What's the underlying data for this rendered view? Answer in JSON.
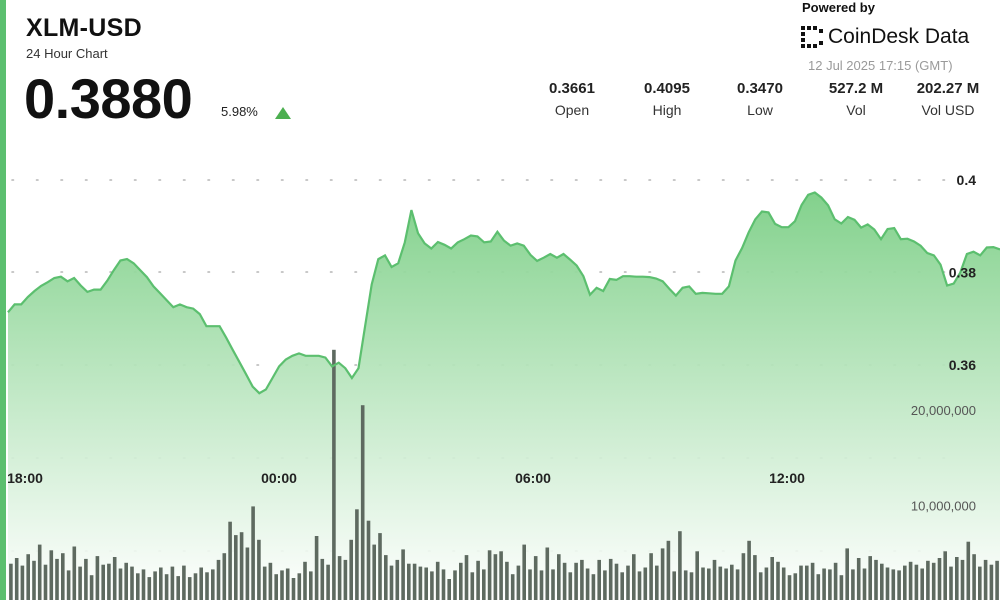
{
  "header": {
    "title": "XLM-USD",
    "subtitle": "24 Hour Chart",
    "price": "0.3880",
    "change_pct": "5.98%",
    "powered_by": "Powered by",
    "brand": "CoinDesk Data",
    "timestamp": "12 Jul 2025 17:15 (GMT)"
  },
  "stats": [
    {
      "value": "0.3661",
      "label": "Open"
    },
    {
      "value": "0.4095",
      "label": "High"
    },
    {
      "value": "0.3470",
      "label": "Low"
    },
    {
      "value": "527.2 M",
      "label": "Vol"
    },
    {
      "value": "202.27 M",
      "label": "Vol USD"
    }
  ],
  "colors": {
    "line": "#5cbf6f",
    "area_top": "#7ccf86",
    "area_bottom": "#ffffff",
    "volume_bar": "#5e6a60",
    "up_arrow": "#4caf50",
    "accent": "#5cbf6f"
  },
  "chart_data": {
    "type": "area",
    "x_ticks": [
      "18:00",
      "00:00",
      "06:00",
      "12:00"
    ],
    "price_axis": {
      "ticks": [
        "0.4",
        "0.38",
        "0.36"
      ],
      "tick_values": [
        0.4,
        0.38,
        0.36
      ],
      "ylim": [
        0.347,
        0.409
      ]
    },
    "volume_axis": {
      "ticks": [
        "20,000,000",
        "10,000,000"
      ],
      "tick_values": [
        20000000,
        10000000
      ],
      "ylim": [
        0,
        27000000
      ]
    },
    "grid": "dotted horizontal",
    "price_series": [
      0.3714,
      0.3731,
      0.3731,
      0.3747,
      0.376,
      0.3771,
      0.3779,
      0.3788,
      0.3791,
      0.3781,
      0.3788,
      0.3772,
      0.3758,
      0.3763,
      0.3763,
      0.3782,
      0.3805,
      0.3826,
      0.3829,
      0.382,
      0.3805,
      0.379,
      0.377,
      0.3755,
      0.374,
      0.3725,
      0.3731,
      0.3725,
      0.3722,
      0.371,
      0.3684,
      0.3684,
      0.3684,
      0.3659,
      0.3632,
      0.3606,
      0.358,
      0.3553,
      0.3539,
      0.3547,
      0.3572,
      0.3597,
      0.3612,
      0.362,
      0.3625,
      0.362,
      0.362,
      0.362,
      0.3616,
      0.3597,
      0.3605,
      0.3593,
      0.3572,
      0.3593,
      0.3684,
      0.3774,
      0.3829,
      0.3837,
      0.3812,
      0.382,
      0.3865,
      0.3935,
      0.3885,
      0.3863,
      0.3852,
      0.3866,
      0.386,
      0.3852,
      0.3865,
      0.3872,
      0.388,
      0.3878,
      0.3865,
      0.3867,
      0.3888,
      0.3869,
      0.3858,
      0.3863,
      0.3858,
      0.3838,
      0.3825,
      0.3832,
      0.384,
      0.3832,
      0.384,
      0.3828,
      0.3815,
      0.3792,
      0.3752,
      0.3767,
      0.376,
      0.3786,
      0.3784,
      0.3792,
      0.3792,
      0.3791,
      0.3791,
      0.379,
      0.3787,
      0.3781,
      0.3765,
      0.375,
      0.3767,
      0.377,
      0.3754,
      0.3756,
      0.3755,
      0.3754,
      0.3754,
      0.377,
      0.3826,
      0.3853,
      0.3887,
      0.3915,
      0.3932,
      0.393,
      0.3905,
      0.3898,
      0.3898,
      0.3911,
      0.3946,
      0.3968,
      0.3973,
      0.3962,
      0.3945,
      0.3915,
      0.3906,
      0.392,
      0.3914,
      0.3897,
      0.3904,
      0.3893,
      0.3872,
      0.3894,
      0.3896,
      0.3872,
      0.3873,
      0.3867,
      0.3858,
      0.3842,
      0.3837,
      0.3817,
      0.3772,
      0.3776,
      0.38,
      0.384,
      0.3845,
      0.3837,
      0.3854,
      0.3855,
      0.385
    ],
    "volume_series": [
      3.8,
      4.4,
      3.6,
      4.8,
      4.1,
      5.8,
      3.7,
      5.2,
      4.3,
      4.9,
      3.1,
      5.6,
      3.5,
      4.3,
      2.6,
      4.6,
      3.7,
      3.8,
      4.5,
      3.3,
      3.9,
      3.5,
      2.8,
      3.2,
      2.4,
      3.0,
      3.4,
      2.7,
      3.5,
      2.5,
      3.6,
      2.4,
      2.8,
      3.4,
      2.9,
      3.2,
      4.2,
      4.9,
      8.2,
      6.8,
      7.1,
      5.5,
      9.8,
      6.3,
      3.5,
      3.9,
      2.7,
      3.1,
      3.3,
      2.3,
      2.8,
      4.0,
      3.0,
      6.7,
      4.3,
      3.7,
      26.2,
      4.6,
      4.2,
      6.3,
      9.5,
      20.4,
      8.3,
      5.8,
      7.0,
      4.7,
      3.6,
      4.2,
      5.3,
      3.8,
      3.8,
      3.5,
      3.4,
      3.0,
      4.0,
      3.2,
      2.2,
      3.1,
      3.9,
      4.7,
      2.9,
      4.1,
      3.2,
      5.2,
      4.8,
      5.1,
      4.0,
      2.7,
      3.6,
      5.8,
      3.2,
      4.6,
      3.1,
      5.5,
      3.2,
      4.8,
      3.9,
      2.9,
      3.9,
      4.2,
      3.3,
      2.7,
      4.2,
      3.1,
      4.3,
      3.8,
      2.9,
      3.6,
      4.8,
      3.0,
      3.4,
      4.9,
      3.6,
      5.4,
      6.2,
      3.0,
      7.2,
      3.1,
      2.9,
      5.1,
      3.4,
      3.3,
      4.2,
      3.5,
      3.3,
      3.7,
      3.2,
      4.9,
      6.2,
      4.7,
      2.9,
      3.4,
      4.5,
      4.0,
      3.4,
      2.6,
      2.8,
      3.6,
      3.6,
      3.9,
      2.7,
      3.3,
      3.2,
      3.9,
      2.6,
      5.4,
      3.2,
      4.4,
      3.3,
      4.6,
      4.2,
      3.8,
      3.4,
      3.2,
      3.1,
      3.6,
      4.0,
      3.7,
      3.3,
      4.1,
      3.9,
      4.4,
      5.1,
      3.5,
      4.5,
      4.2,
      6.1,
      4.8,
      3.5,
      4.2,
      3.7,
      4.1
    ]
  }
}
